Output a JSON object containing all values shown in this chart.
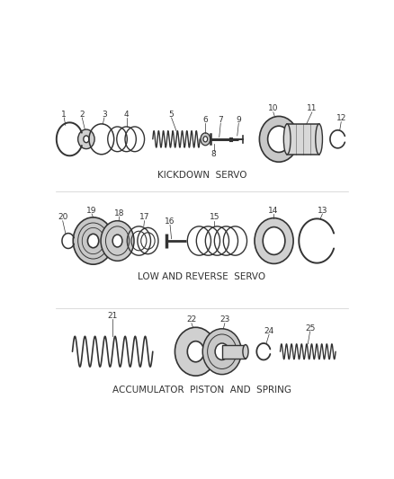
{
  "bg_color": "#ffffff",
  "line_color": "#333333",
  "section1_label": "KICKDOWN  SERVO",
  "section2_label": "LOW AND REVERSE  SERVO",
  "section3_label": "ACCUMULATOR  PISTON  AND  SPRING",
  "label_fontsize": 7.5,
  "number_fontsize": 6.5
}
